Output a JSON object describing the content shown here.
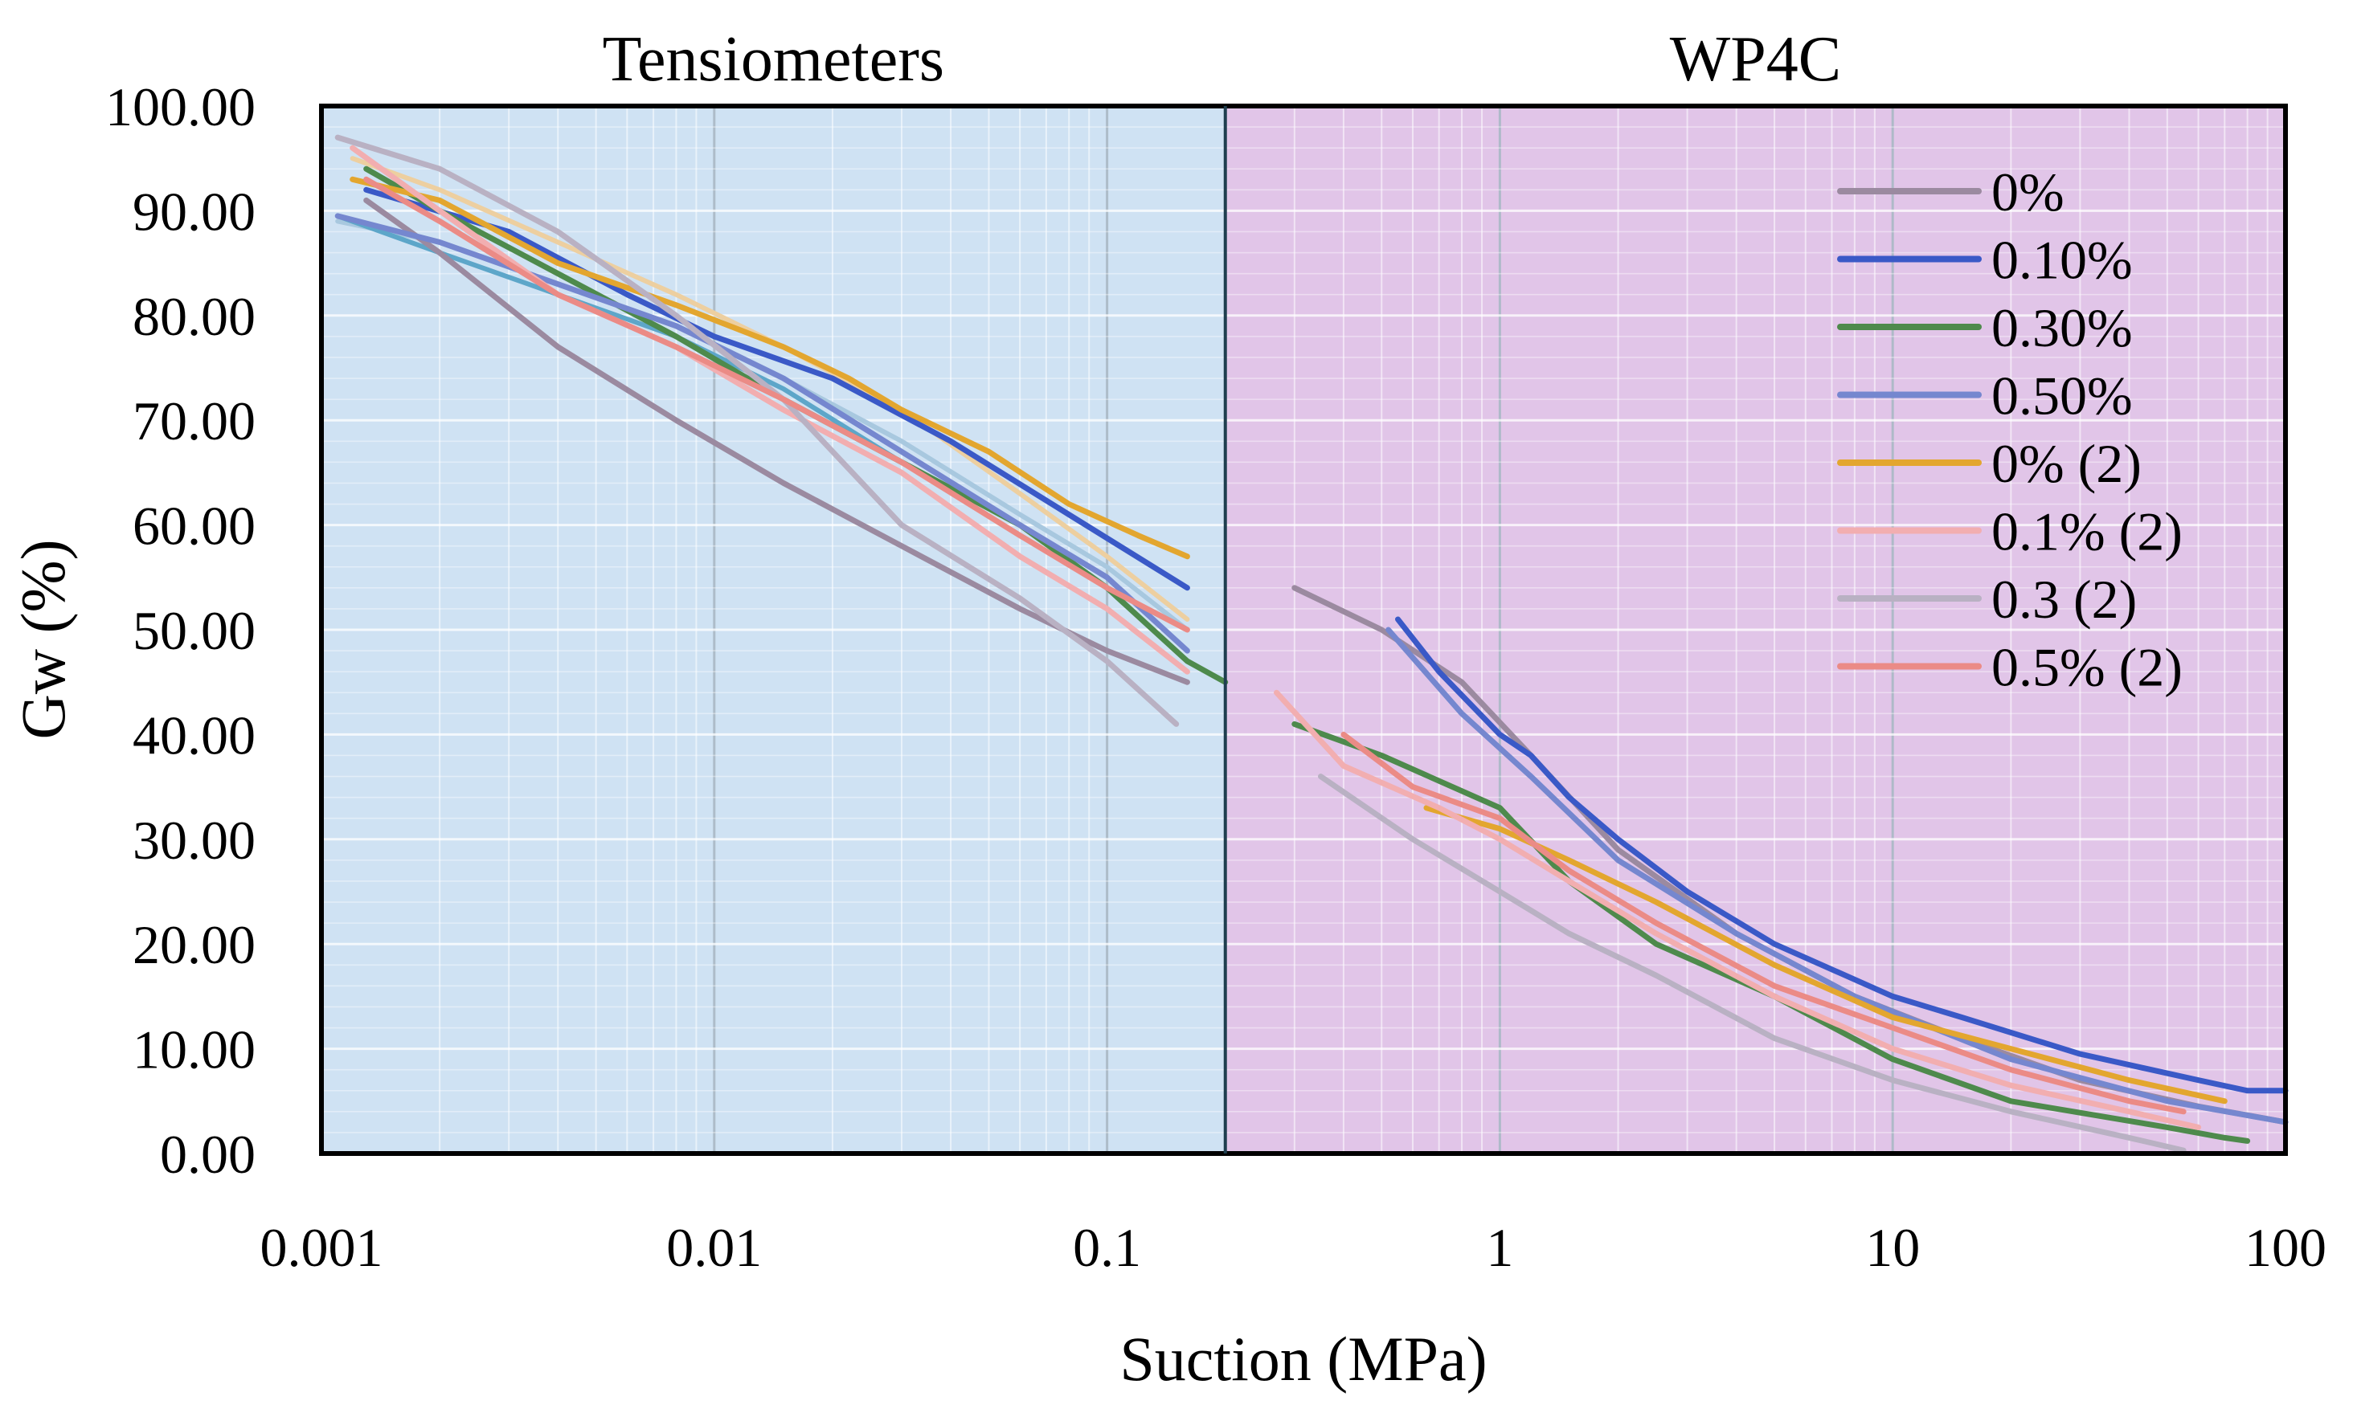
{
  "chart_data": {
    "type": "line",
    "title": "",
    "region_labels": [
      "Tensiometers",
      "WP4C"
    ],
    "region_colors": [
      "#cfe2f3",
      "#e1c5e8"
    ],
    "region_boundary_x": 0.2,
    "xlabel": "Suction (MPa)",
    "ylabel_main": "Gw",
    "ylabel_unit": " (%)",
    "xscale": "log",
    "xlim": [
      0.001,
      100
    ],
    "ylim": [
      0,
      100
    ],
    "x_ticks": [
      0.001,
      0.01,
      0.1,
      1,
      10,
      100
    ],
    "x_tick_labels": [
      "0.001",
      "0.01",
      "0.1",
      "1",
      "10",
      "100"
    ],
    "y_ticks": [
      0,
      10,
      20,
      30,
      40,
      50,
      60,
      70,
      80,
      90,
      100
    ],
    "y_tick_labels": [
      "0.00",
      "10.00",
      "20.00",
      "30.00",
      "40.00",
      "50.00",
      "60.00",
      "70.00",
      "80.00",
      "90.00",
      "100.00"
    ],
    "grid": true,
    "legend_position": "right",
    "series": [
      {
        "name": "0%",
        "color": "#9b8aa0",
        "x": [
          0.0013,
          0.002,
          0.004,
          0.008,
          0.015,
          0.03,
          0.06,
          0.1,
          0.16,
          0.3,
          0.5,
          0.8,
          1.2,
          2,
          4,
          8,
          15,
          30,
          60,
          100
        ],
        "y": [
          91,
          86,
          77,
          70,
          64,
          58,
          52,
          48,
          45,
          54,
          50,
          45,
          38,
          29,
          21,
          15,
          11,
          7,
          4.5,
          3
        ]
      },
      {
        "name": "0.10%",
        "color": "#3a59c7",
        "x": [
          0.0013,
          0.003,
          0.006,
          0.01,
          0.02,
          0.04,
          0.08,
          0.16,
          0.55,
          0.7,
          1,
          1.2,
          1.5,
          2,
          3,
          5,
          10,
          15,
          30,
          60,
          80,
          100
        ],
        "y": [
          92,
          88,
          82,
          78,
          74,
          68,
          61,
          54,
          51,
          46,
          40,
          38,
          34,
          30,
          25,
          20,
          15,
          13,
          9.5,
          7,
          6,
          6
        ]
      },
      {
        "name": "0.30%",
        "color": "#4e8a4c",
        "x": [
          0.0013,
          0.002,
          0.004,
          0.008,
          0.015,
          0.03,
          0.06,
          0.1,
          0.16,
          0.2,
          0.3,
          0.5,
          1,
          1.5,
          2.5,
          5,
          10,
          20,
          50,
          70,
          80
        ],
        "y": [
          94,
          90,
          84,
          78,
          72,
          66,
          60,
          54,
          47,
          45,
          41,
          38,
          33,
          26,
          20,
          15,
          9,
          5,
          2.5,
          1.5,
          1.2
        ]
      },
      {
        "name": "0.50%",
        "color": "#7587cf",
        "x": [
          0.0011,
          0.002,
          0.004,
          0.008,
          0.015,
          0.03,
          0.06,
          0.1,
          0.16,
          0.52,
          0.8,
          1.2,
          2,
          4,
          8,
          20,
          50,
          100
        ],
        "y": [
          89.5,
          87,
          83,
          79,
          74,
          67,
          60,
          55,
          48,
          50,
          42,
          36,
          28,
          21,
          15,
          9,
          5,
          3
        ]
      },
      {
        "name": "0% (2)",
        "color": "#e3a62f",
        "x": [
          0.0012,
          0.002,
          0.004,
          0.008,
          0.015,
          0.022,
          0.03,
          0.05,
          0.08,
          0.12,
          0.16,
          0.65,
          1,
          1.5,
          2.5,
          5,
          10,
          20,
          40,
          70
        ],
        "y": [
          93,
          91,
          85,
          81,
          77,
          74,
          71,
          67,
          62,
          59,
          57,
          33,
          31,
          28,
          24,
          18,
          13,
          10,
          7,
          5
        ]
      },
      {
        "name": "0.1% (2)",
        "color": "#f2aeb0",
        "x": [
          0.0012,
          0.002,
          0.004,
          0.008,
          0.015,
          0.03,
          0.06,
          0.1,
          0.16,
          0.27,
          0.4,
          0.7,
          1,
          1.5,
          2.5,
          5,
          10,
          20,
          40,
          60
        ],
        "y": [
          96,
          90,
          82,
          77,
          71,
          65,
          57,
          52,
          46,
          44,
          37,
          33,
          30,
          26,
          21,
          15,
          10,
          6.5,
          4,
          2.5
        ]
      },
      {
        "name": "0.3 (2)",
        "color": "#b9b1c3",
        "x": [
          0.0011,
          0.002,
          0.004,
          0.008,
          0.015,
          0.03,
          0.06,
          0.1,
          0.15,
          0.35,
          0.6,
          1,
          1.5,
          2.5,
          5,
          10,
          20,
          40,
          55
        ],
        "y": [
          97,
          94,
          88,
          80,
          72,
          60,
          53,
          47,
          41,
          36,
          30,
          25,
          21,
          17,
          11,
          7,
          4,
          1.5,
          0.3
        ]
      },
      {
        "name": "0.5% (2)",
        "color": "#eb8b86",
        "x": [
          0.0013,
          0.002,
          0.004,
          0.008,
          0.015,
          0.03,
          0.06,
          0.1,
          0.16,
          0.4,
          0.6,
          1,
          1.5,
          2.5,
          5,
          10,
          20,
          40,
          55
        ],
        "y": [
          93,
          89,
          82,
          77,
          72,
          66,
          59,
          54,
          50,
          40,
          35,
          32,
          27,
          22,
          16,
          12,
          8,
          5,
          4
        ]
      }
    ],
    "overlay_extra_curves": [
      {
        "color": "#a8c8df",
        "x": [
          0.0011,
          0.002,
          0.004,
          0.008,
          0.015,
          0.03,
          0.06,
          0.1,
          0.16
        ],
        "y": [
          89,
          87,
          83,
          79,
          74,
          68,
          61,
          56,
          50
        ]
      },
      {
        "color": "#edcfa0",
        "x": [
          0.0012,
          0.002,
          0.004,
          0.008,
          0.015,
          0.03,
          0.06,
          0.1,
          0.16
        ],
        "y": [
          95,
          92,
          87,
          82,
          77,
          71,
          63,
          57,
          51
        ]
      },
      {
        "color": "#5da6c9",
        "x": [
          0.0011,
          0.002,
          0.004,
          0.008,
          0.015,
          0.03,
          0.06,
          0.1,
          0.16
        ],
        "y": [
          89.5,
          86,
          82,
          78,
          73,
          66,
          59,
          54,
          47
        ]
      }
    ]
  }
}
